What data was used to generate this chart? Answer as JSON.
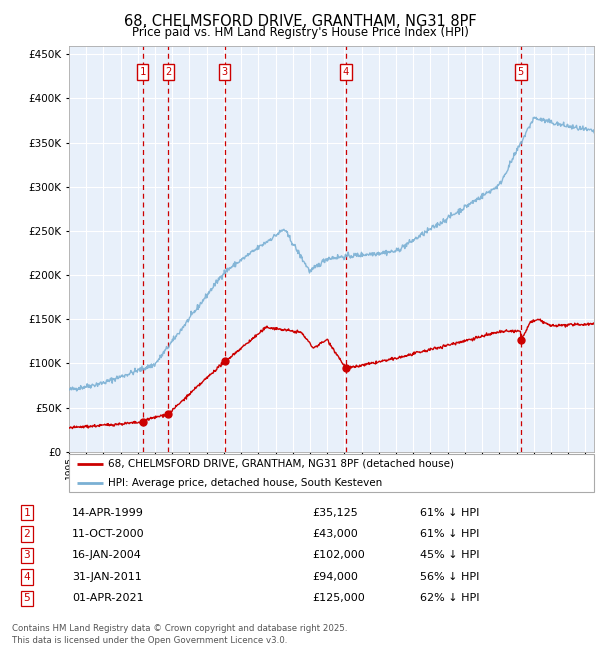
{
  "title_line1": "68, CHELMSFORD DRIVE, GRANTHAM, NG31 8PF",
  "title_line2": "Price paid vs. HM Land Registry's House Price Index (HPI)",
  "legend_red": "68, CHELMSFORD DRIVE, GRANTHAM, NG31 8PF (detached house)",
  "legend_blue": "HPI: Average price, detached house, South Kesteven",
  "footer": "Contains HM Land Registry data © Crown copyright and database right 2025.\nThis data is licensed under the Open Government Licence v3.0.",
  "transactions": [
    {
      "num": 1,
      "date": "14-APR-1999",
      "price": 35125,
      "year": 1999.28,
      "price_str": "£35,125",
      "pct": "61% ↓ HPI"
    },
    {
      "num": 2,
      "date": "11-OCT-2000",
      "price": 43000,
      "year": 2000.78,
      "price_str": "£43,000",
      "pct": "61% ↓ HPI"
    },
    {
      "num": 3,
      "date": "16-JAN-2004",
      "price": 102000,
      "year": 2004.04,
      "price_str": "£102,000",
      "pct": "45% ↓ HPI"
    },
    {
      "num": 4,
      "date": "31-JAN-2011",
      "price": 94000,
      "year": 2011.08,
      "price_str": "£94,000",
      "pct": "56% ↓ HPI"
    },
    {
      "num": 5,
      "date": "01-APR-2021",
      "price": 125000,
      "year": 2021.25,
      "price_str": "£125,000",
      "pct": "62% ↓ HPI"
    }
  ],
  "ylim": [
    0,
    460000
  ],
  "xlim_start": 1995.0,
  "xlim_end": 2025.5,
  "plot_bg": "#e8f0fa",
  "red_color": "#cc0000",
  "blue_color": "#7ab0d4",
  "grid_color": "#c8d8e8",
  "vline_color": "#cc0000",
  "box_color": "#cc0000",
  "seed": 42
}
